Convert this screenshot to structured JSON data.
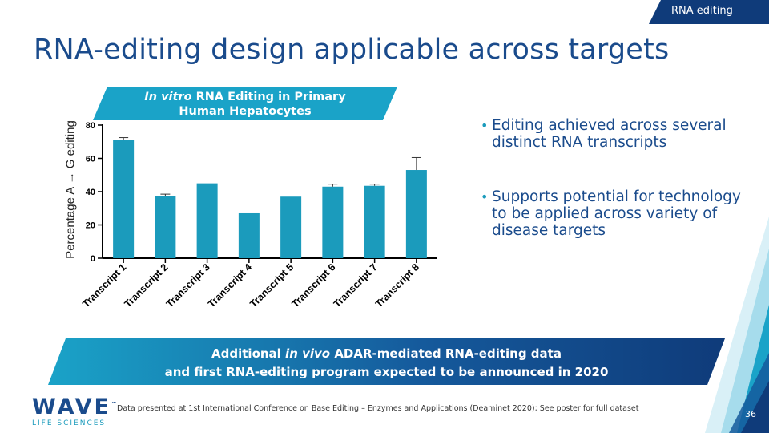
{
  "tag": "RNA editing",
  "title": "RNA-editing design applicable across targets",
  "panel": {
    "header_italic": "In vitro",
    "header_line1_rest": " RNA Editing in Primary",
    "header_line2": "Human Hepatocytes"
  },
  "chart_data": {
    "type": "bar",
    "categories": [
      "Transcript 1",
      "Transcript 2",
      "Transcript 3",
      "Transcript 4",
      "Transcript 5",
      "Transcript 6",
      "Transcript 7",
      "Transcript 8"
    ],
    "values": [
      71,
      37.5,
      45,
      27,
      37,
      43,
      43.5,
      53
    ],
    "error_upper": [
      72.5,
      38.5,
      null,
      null,
      null,
      44.5,
      44.5,
      60.5
    ],
    "ylabel": "Percentage A → G editing",
    "ylim": [
      0,
      80
    ],
    "yticks": [
      "0",
      "20",
      "40",
      "60",
      "80"
    ],
    "bar_color": "#1b9bbc"
  },
  "bullets": [
    "Editing achieved across several distinct RNA transcripts",
    "Supports potential for technology to be applied across variety of disease targets"
  ],
  "banner": {
    "line1_pre": "Additional ",
    "line1_italic": "in vivo",
    "line1_post": " ADAR-mediated RNA-editing data",
    "line2": "and first RNA-editing program expected to be announced in 2020"
  },
  "logo": {
    "word": "WAVE",
    "tm": "™",
    "sub": "LIFE SCIENCES"
  },
  "footnote": "Data presented at 1st International Conference on Base Editing – Enzymes and Applications (Deaminet 2020); See poster for full dataset",
  "page_number": "36",
  "colors": {
    "navy": "#1a4b8c",
    "teal": "#1b9bbc",
    "banner_dark": "#0f3b7a"
  }
}
